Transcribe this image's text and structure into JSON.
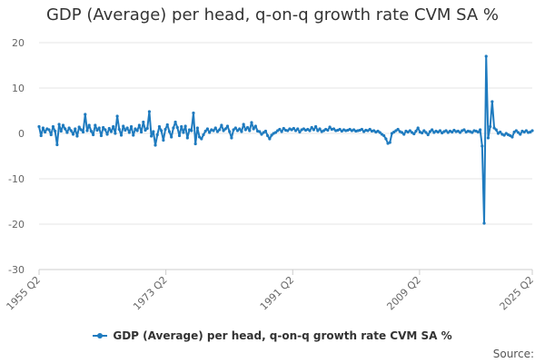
{
  "chart_data": {
    "type": "line",
    "title": "GDP (Average) per head, q-on-q growth rate CVM SA %",
    "xlabel": "",
    "ylabel": "",
    "ylim": [
      -30,
      20
    ],
    "yticks": [
      20,
      10,
      0,
      -10,
      -20,
      -30
    ],
    "xticks": [
      "1955 Q2",
      "1973 Q2",
      "1991 Q2",
      "2009 Q2",
      "2025 Q2"
    ],
    "x_start": {
      "year": 1955,
      "quarter": 2
    },
    "x_end": {
      "year": 2025,
      "quarter": 2
    },
    "legend_position": "bottom",
    "grid": true,
    "color": "#1f7bbf",
    "series": [
      {
        "name": "GDP (Average) per head, q-on-q growth rate CVM SA %",
        "values": [
          1.5,
          -0.5,
          1.2,
          0.3,
          1.0,
          0.8,
          -0.3,
          1.5,
          0.5,
          -2.5,
          2.0,
          0.5,
          1.8,
          1.0,
          0.2,
          1.2,
          0.6,
          -0.2,
          1.0,
          -0.6,
          1.4,
          0.8,
          0.3,
          4.2,
          0.6,
          1.8,
          0.5,
          -0.3,
          1.8,
          0.7,
          1.2,
          -0.5,
          1.3,
          0.8,
          -0.2,
          1.1,
          0.4,
          1.5,
          0.0,
          3.8,
          0.9,
          -0.4,
          1.6,
          0.7,
          1.2,
          0.2,
          1.5,
          -0.4,
          1.0,
          0.6,
          1.8,
          0.3,
          2.5,
          0.7,
          1.1,
          4.8,
          -0.6,
          0.4,
          -2.6,
          -0.3,
          1.5,
          0.6,
          -1.5,
          0.9,
          1.9,
          0.4,
          -0.8,
          1.2,
          2.5,
          1.3,
          -0.5,
          1.5,
          0.2,
          1.6,
          -1.0,
          0.8,
          0.6,
          4.5,
          -2.3,
          1.2,
          -0.8,
          -1.2,
          -0.3,
          0.5,
          1.0,
          0.2,
          0.8,
          0.6,
          1.2,
          0.4,
          0.8,
          1.8,
          0.6,
          1.0,
          1.6,
          0.4,
          -1.0,
          0.8,
          1.2,
          0.6,
          1.0,
          0.4,
          2.0,
          0.8,
          1.3,
          0.6,
          2.4,
          1.0,
          1.6,
          0.5,
          0.4,
          -0.2,
          0.2,
          0.5,
          -0.5,
          -1.2,
          -0.4,
          0.0,
          0.2,
          0.6,
          0.9,
          0.4,
          1.1,
          0.7,
          0.6,
          1.0,
          0.8,
          1.1,
          0.6,
          1.0,
          0.3,
          0.8,
          1.0,
          0.7,
          0.9,
          0.6,
          1.3,
          0.8,
          1.5,
          0.6,
          1.0,
          0.4,
          0.6,
          0.9,
          0.7,
          1.4,
          0.9,
          1.0,
          0.6,
          0.7,
          0.9,
          0.5,
          0.8,
          0.6,
          0.7,
          0.9,
          0.6,
          0.8,
          0.5,
          0.6,
          0.7,
          0.9,
          0.4,
          0.7,
          0.6,
          0.9,
          0.5,
          0.6,
          0.3,
          0.5,
          0.2,
          -0.2,
          -0.5,
          -1.2,
          -2.2,
          -2.0,
          0.0,
          0.3,
          0.6,
          0.9,
          0.4,
          0.2,
          -0.2,
          0.5,
          0.3,
          0.6,
          0.2,
          -0.1,
          0.5,
          1.2,
          0.3,
          0.1,
          0.6,
          0.2,
          -0.3,
          0.4,
          0.8,
          0.2,
          0.5,
          0.3,
          0.6,
          0.1,
          0.4,
          0.6,
          0.2,
          0.5,
          0.3,
          0.7,
          0.4,
          0.5,
          0.2,
          0.6,
          0.8,
          0.3,
          0.5,
          0.4,
          0.2,
          0.6,
          0.5,
          0.3,
          0.8,
          -2.8,
          -19.8,
          17.0,
          -1.0,
          1.5,
          7.0,
          1.2,
          0.8,
          0.0,
          0.3,
          -0.2,
          -0.4,
          0.0,
          -0.3,
          -0.5,
          -0.8,
          0.3,
          0.6,
          0.2,
          -0.2,
          0.5,
          0.3,
          0.6,
          0.2,
          0.3,
          0.6
        ]
      }
    ],
    "legend": [
      "GDP (Average) per head, q-on-q growth rate CVM SA %"
    ],
    "source_label": "Source:"
  }
}
